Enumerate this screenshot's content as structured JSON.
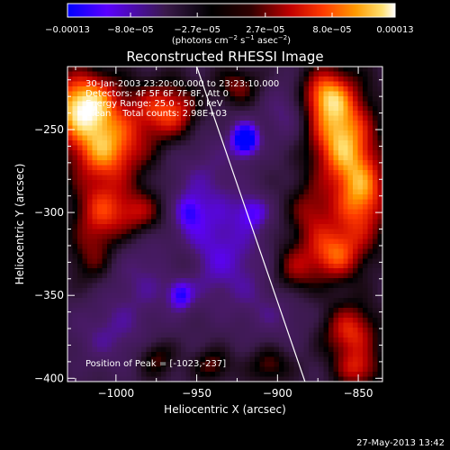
{
  "chart_data": {
    "type": "heatmap",
    "title": "Reconstructed RHESSI Image",
    "xlabel": "Heliocentric X (arcsec)",
    "ylabel": "Heliocentric Y (arcsec)",
    "xlim": [
      -1030,
      -835
    ],
    "ylim": [
      -402,
      -212
    ],
    "x_ticks": [
      -1000,
      -950,
      -900,
      -850
    ],
    "x_tick_labels": [
      "−1000",
      "−950",
      "−900",
      "−850"
    ],
    "y_ticks": [
      -250,
      -300,
      -350,
      -400
    ],
    "y_tick_labels": [
      "−250",
      "−300",
      "−350",
      "−400"
    ],
    "colorbar": {
      "min": -0.00013,
      "max": 0.00013,
      "ticks": [
        -0.00013,
        -8e-05,
        -2.7e-05,
        2.7e-05,
        8e-05,
        0.00013
      ],
      "tick_labels": [
        "−0.00013",
        "−8.0e−05",
        "−2.7e−05",
        "2.7e−05",
        "8.0e−05",
        "0.00013"
      ],
      "units_main": "(photons cm",
      "units_exp1": "−2",
      "units_mid": " s",
      "units_exp2": "−1",
      "units_mid2": " asec",
      "units_exp3": "−2",
      "units_end": ")",
      "palette": [
        "#0000ff",
        "#5b00ff",
        "#3a1a4a",
        "#000000",
        "#3a0000",
        "#b00000",
        "#ff2a00",
        "#ff7a00",
        "#ffc000",
        "#ffff88",
        "#ffffff"
      ]
    },
    "annotations": [
      "30-Jan-2003 23:20:00.000 to 23:23:10.000",
      "Detectors: 4F 5F 6F 7F 8F, Att 0",
      "Energy Range: 25.0 - 50.0 keV",
      "Clean    Total counts: 2.98E+03"
    ],
    "peak_label": "Position of Peak = [-1023,-237]",
    "peak": [
      -1023,
      -237
    ],
    "limb_line": [
      [
        -950,
        -212
      ],
      [
        -883,
        -402
      ]
    ],
    "blobs": [
      {
        "x": -1020,
        "y": -235,
        "sx": 16,
        "sy": 14,
        "a": 1.15
      },
      {
        "x": -1005,
        "y": -262,
        "sx": 18,
        "sy": 14,
        "a": 0.85
      },
      {
        "x": -975,
        "y": -238,
        "sx": 12,
        "sy": 12,
        "a": 0.55
      },
      {
        "x": -1010,
        "y": -300,
        "sx": 12,
        "sy": 16,
        "a": 0.65
      },
      {
        "x": -985,
        "y": -300,
        "sx": 12,
        "sy": 10,
        "a": 0.55
      },
      {
        "x": -1015,
        "y": -330,
        "sx": 10,
        "sy": 12,
        "a": 0.35
      },
      {
        "x": -960,
        "y": -240,
        "sx": 10,
        "sy": 12,
        "a": 0.45
      },
      {
        "x": -925,
        "y": -224,
        "sx": 10,
        "sy": 8,
        "a": 0.45
      },
      {
        "x": -960,
        "y": -330,
        "sx": 8,
        "sy": 8,
        "a": 0.3
      },
      {
        "x": -975,
        "y": -388,
        "sx": 8,
        "sy": 8,
        "a": 0.4
      },
      {
        "x": -940,
        "y": -392,
        "sx": 8,
        "sy": 7,
        "a": 0.4
      },
      {
        "x": -890,
        "y": -335,
        "sx": 10,
        "sy": 12,
        "a": 0.5
      },
      {
        "x": -880,
        "y": -300,
        "sx": 10,
        "sy": 12,
        "a": 0.45
      },
      {
        "x": -905,
        "y": -392,
        "sx": 9,
        "sy": 8,
        "a": 0.4
      },
      {
        "x": -862,
        "y": -250,
        "sx": 14,
        "sy": 22,
        "a": 1.0
      },
      {
        "x": -848,
        "y": -290,
        "sx": 12,
        "sy": 20,
        "a": 0.85
      },
      {
        "x": -865,
        "y": -325,
        "sx": 12,
        "sy": 12,
        "a": 0.75
      },
      {
        "x": -855,
        "y": -372,
        "sx": 12,
        "sy": 12,
        "a": 0.7
      },
      {
        "x": -850,
        "y": -395,
        "sx": 10,
        "sy": 8,
        "a": 0.55
      },
      {
        "x": -872,
        "y": -228,
        "sx": 10,
        "sy": 10,
        "a": 0.55
      },
      {
        "x": -920,
        "y": -256,
        "sx": 6,
        "sy": 7,
        "a": -1.0
      },
      {
        "x": -945,
        "y": -290,
        "sx": 18,
        "sy": 30,
        "a": -0.35
      },
      {
        "x": -930,
        "y": -330,
        "sx": 20,
        "sy": 22,
        "a": -0.35
      },
      {
        "x": -960,
        "y": -350,
        "sx": 5,
        "sy": 6,
        "a": -0.55
      },
      {
        "x": -985,
        "y": -340,
        "sx": 20,
        "sy": 20,
        "a": -0.3
      },
      {
        "x": -1005,
        "y": -375,
        "sx": 18,
        "sy": 14,
        "a": -0.3
      },
      {
        "x": -900,
        "y": -360,
        "sx": 16,
        "sy": 14,
        "a": -0.25
      },
      {
        "x": -895,
        "y": -240,
        "sx": 10,
        "sy": 14,
        "a": -0.35
      },
      {
        "x": -915,
        "y": -300,
        "sx": 7,
        "sy": 7,
        "a": -0.45
      },
      {
        "x": -955,
        "y": -300,
        "sx": 6,
        "sy": 7,
        "a": -0.4
      }
    ]
  },
  "footer": {
    "timestamp": "27-May-2013 13:42"
  }
}
